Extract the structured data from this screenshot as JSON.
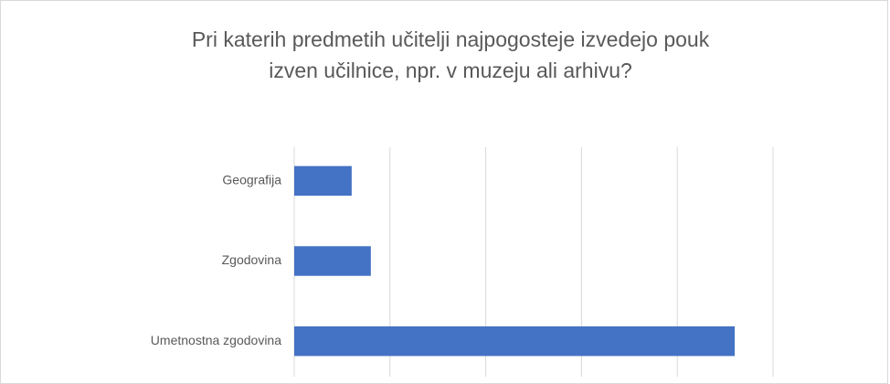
{
  "chart_data": {
    "type": "hbar",
    "title": "Pri katerih predmetih učitelji najpogosteje izvedejo pouk izven učilnice, npr. v muzeju ali arhivu?",
    "categories": [
      "Geografija",
      "Zgodovina",
      "Umetnostna zgodovina"
    ],
    "values": [
      6,
      8,
      46
    ],
    "color": "#4472c4",
    "xlim": [
      0,
      50
    ],
    "xticks": [
      0,
      10,
      20,
      30,
      40,
      50
    ],
    "grid": true
  }
}
